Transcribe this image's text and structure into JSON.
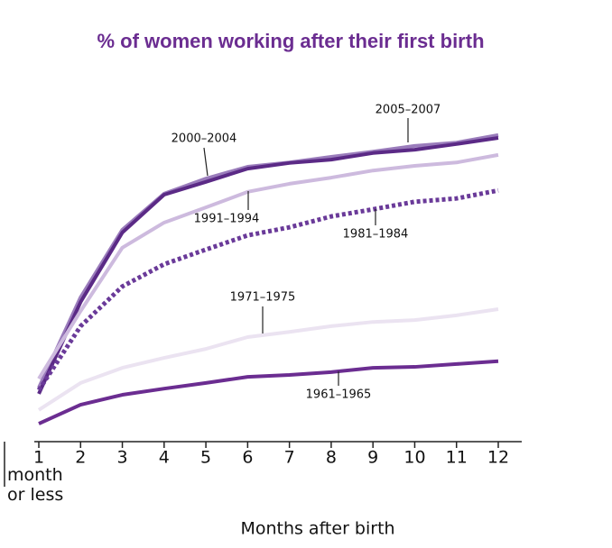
{
  "chart_data": {
    "type": "line",
    "title": "% of women working after their first birth",
    "x_label": "Months after birth",
    "annotation": "month or less",
    "categories": [
      "1",
      "2",
      "3",
      "4",
      "5",
      "6",
      "7",
      "8",
      "9",
      "10",
      "11",
      "12"
    ],
    "ylim": [
      0,
      76.2
    ],
    "series": [
      {
        "name": "2005–2007",
        "color": "#9a7cbb",
        "style": "solid",
        "values": [
          11.4,
          30.5,
          44.8,
          52.4,
          55.6,
          58.1,
          59.0,
          60.2,
          61.3,
          62.5,
          63.2,
          64.8
        ]
      },
      {
        "name": "2000–2004",
        "color": "#5b2a86",
        "style": "solid",
        "values": [
          10.1,
          29.5,
          44.2,
          52.2,
          54.9,
          57.7,
          58.9,
          59.6,
          61.0,
          61.7,
          62.9,
          64.2
        ]
      },
      {
        "name": "1991–1994",
        "color": "#cdbade",
        "style": "solid",
        "values": [
          13.3,
          27.6,
          41.0,
          46.3,
          49.5,
          52.8,
          54.5,
          55.8,
          57.3,
          58.3,
          59.0,
          60.6
        ]
      },
      {
        "name": "1981–1984",
        "color": "#6a3a99",
        "style": "dotted",
        "values": [
          10.9,
          24.4,
          32.8,
          37.5,
          40.6,
          43.6,
          45.3,
          47.6,
          49.1,
          50.7,
          51.4,
          53.1
        ]
      },
      {
        "name": "1971–1975",
        "color": "#ebe3f1",
        "style": "solid",
        "values": [
          6.7,
          12.4,
          15.6,
          17.7,
          19.6,
          22.1,
          23.2,
          24.4,
          25.3,
          25.7,
          26.7,
          28.0
        ]
      },
      {
        "name": "1961–1965",
        "color": "#6b2d91",
        "style": "solid",
        "values": [
          3.8,
          7.8,
          9.9,
          11.2,
          12.4,
          13.7,
          14.1,
          14.7,
          15.6,
          15.8,
          16.4,
          17.0
        ]
      }
    ]
  }
}
